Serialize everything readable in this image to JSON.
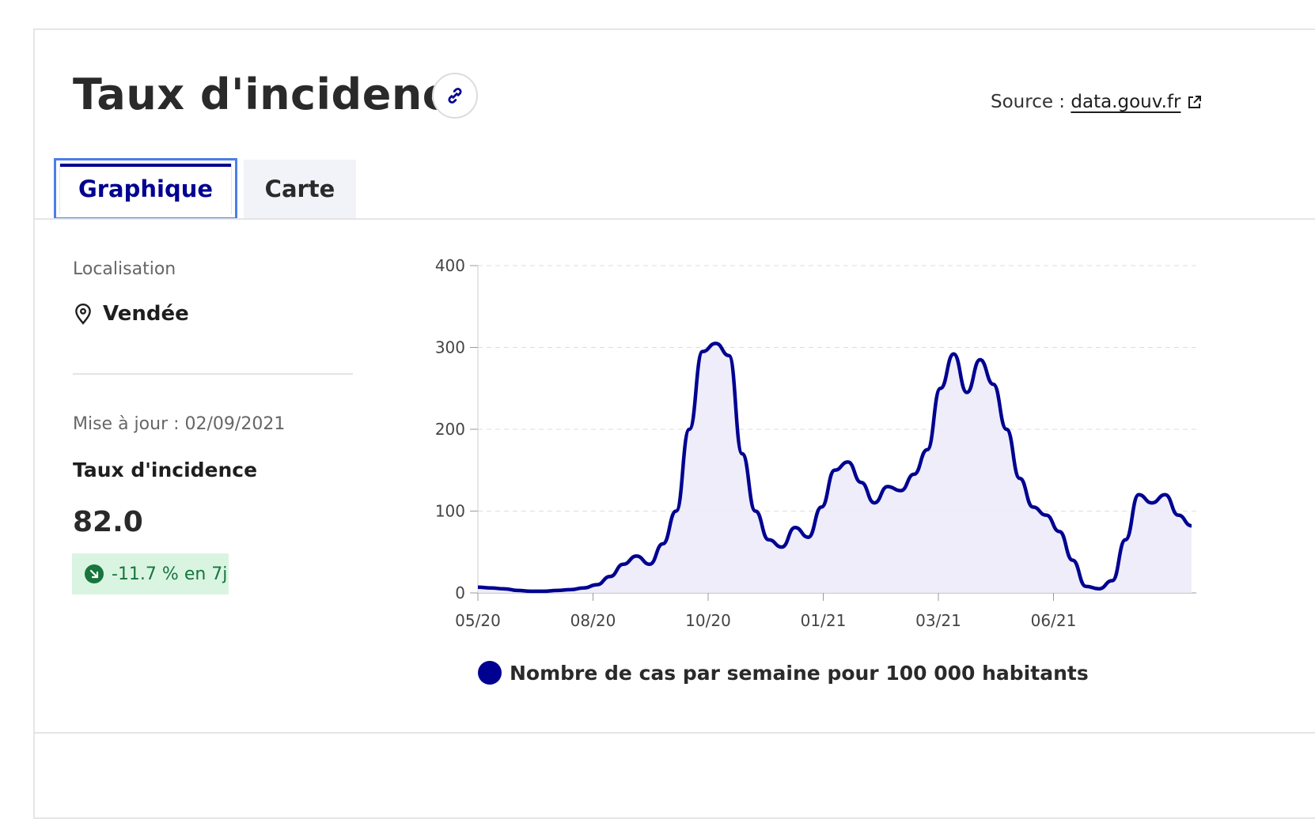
{
  "header": {
    "title": "Taux d'incidence",
    "source_prefix": "Source : ",
    "source_link": "data.gouv.fr",
    "link_icon": "link-icon",
    "external_icon": "external-link-icon"
  },
  "tabs": [
    {
      "label": "Graphique",
      "active": true
    },
    {
      "label": "Carte",
      "active": false
    }
  ],
  "sidebar": {
    "localisation_label": "Localisation",
    "location_icon": "map-pin-icon",
    "location": "Vendée",
    "updated": "Mise à jour : 02/09/2021",
    "metric_label": "Taux d'incidence",
    "metric_value": "82.0",
    "trend_text": "-11.7 % en 7j",
    "trend_icon": "arrow-down-right-icon",
    "trend_color": "#18753c"
  },
  "colors": {
    "accent": "#000091",
    "focus": "#4a7fea",
    "trend_bg": "#d9f5e2"
  },
  "chart_data": {
    "type": "area",
    "title": "",
    "xlabel": "",
    "ylabel": "",
    "ylim": [
      0,
      400
    ],
    "yticks": [
      "0",
      "100",
      "200",
      "300",
      "400"
    ],
    "xticks": [
      "05/20",
      "08/20",
      "10/20",
      "01/21",
      "03/21",
      "06/21"
    ],
    "grid": true,
    "legend_position": "bottom",
    "series": [
      {
        "name": "Nombre de cas par semaine pour 100 000 habitants",
        "color": "#000091",
        "points": [
          [
            "05/20",
            7
          ],
          [
            "05/20",
            6
          ],
          [
            "06/20",
            5
          ],
          [
            "06/20",
            3
          ],
          [
            "07/20",
            2
          ],
          [
            "07/20",
            2
          ],
          [
            "08/20",
            3
          ],
          [
            "08/20",
            4
          ],
          [
            "08/20",
            6
          ],
          [
            "09/20",
            10
          ],
          [
            "09/20",
            20
          ],
          [
            "09/20",
            35
          ],
          [
            "09/20",
            45
          ],
          [
            "09/20",
            35
          ],
          [
            "10/20",
            60
          ],
          [
            "10/20",
            100
          ],
          [
            "10/20",
            200
          ],
          [
            "10/20",
            295
          ],
          [
            "10/20",
            305
          ],
          [
            "11/20",
            290
          ],
          [
            "11/20",
            170
          ],
          [
            "11/20",
            100
          ],
          [
            "11/20",
            65
          ],
          [
            "12/20",
            56
          ],
          [
            "12/20",
            80
          ],
          [
            "12/20",
            68
          ],
          [
            "12/20",
            105
          ],
          [
            "12/20",
            150
          ],
          [
            "01/21",
            160
          ],
          [
            "01/21",
            135
          ],
          [
            "01/21",
            110
          ],
          [
            "01/21",
            130
          ],
          [
            "02/21",
            125
          ],
          [
            "02/21",
            145
          ],
          [
            "02/21",
            175
          ],
          [
            "03/21",
            250
          ],
          [
            "03/21",
            292
          ],
          [
            "03/21",
            245
          ],
          [
            "03/21",
            285
          ],
          [
            "03/21",
            255
          ],
          [
            "04/21",
            200
          ],
          [
            "04/21",
            140
          ],
          [
            "04/21",
            105
          ],
          [
            "05/21",
            95
          ],
          [
            "05/21",
            75
          ],
          [
            "05/21",
            40
          ],
          [
            "06/21",
            8
          ],
          [
            "06/21",
            5
          ],
          [
            "06/21",
            15
          ],
          [
            "07/21",
            65
          ],
          [
            "07/21",
            120
          ],
          [
            "07/21",
            110
          ],
          [
            "08/21",
            120
          ],
          [
            "08/21",
            95
          ],
          [
            "09/21",
            82
          ]
        ]
      }
    ]
  }
}
